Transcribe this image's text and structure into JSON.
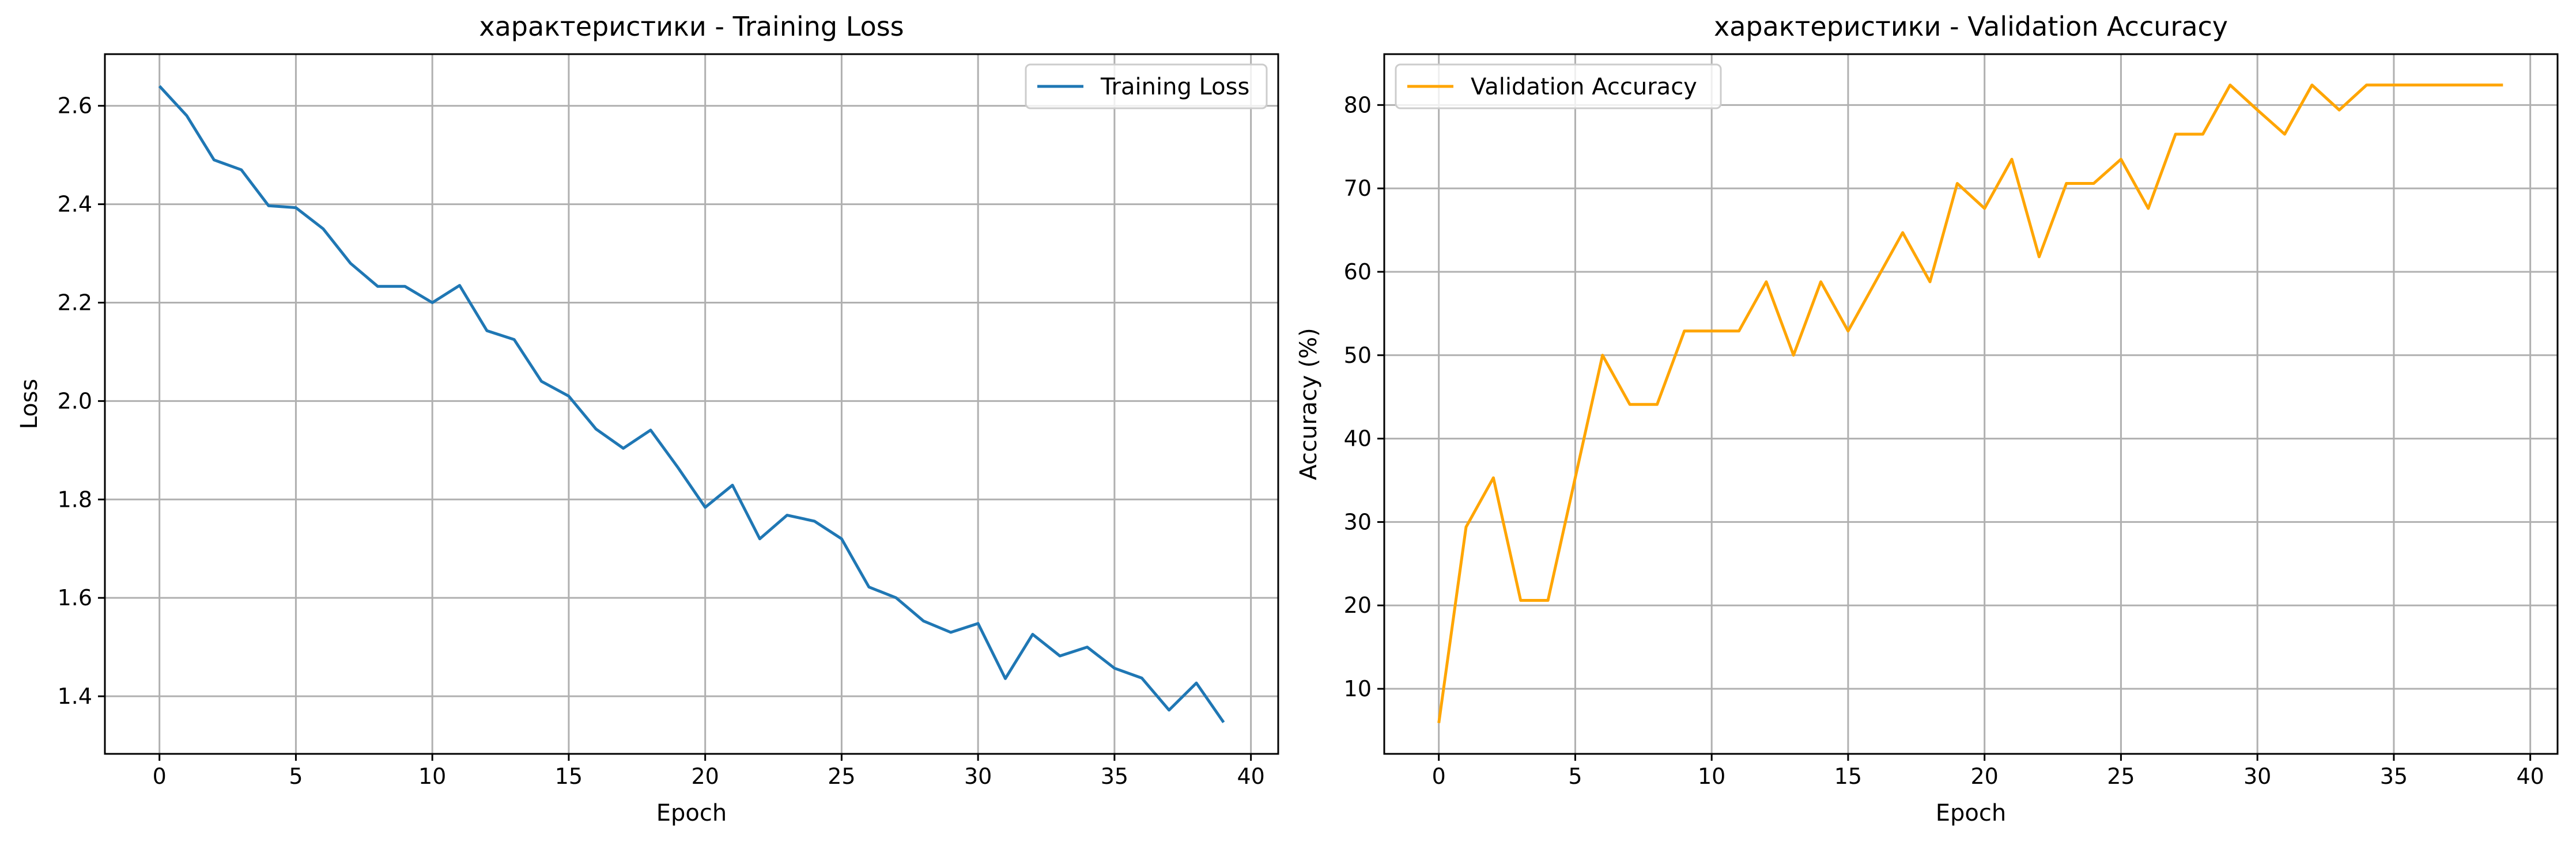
{
  "chart_data": [
    {
      "type": "line",
      "title": "характеристики - Training Loss",
      "xlabel": "Epoch",
      "ylabel": "Loss",
      "xlim": [
        -2,
        41
      ],
      "ylim": [
        1.283,
        2.705
      ],
      "xticks": [
        0,
        5,
        10,
        15,
        20,
        25,
        30,
        35,
        40
      ],
      "yticks": [
        1.4,
        1.6,
        1.8,
        2.0,
        2.2,
        2.4,
        2.6
      ],
      "grid": true,
      "legend_position": "top-right",
      "series": [
        {
          "name": "Training Loss",
          "color": "#1f77b4",
          "x": [
            0,
            1,
            2,
            3,
            4,
            5,
            6,
            7,
            8,
            9,
            10,
            11,
            12,
            13,
            14,
            15,
            16,
            17,
            18,
            19,
            20,
            21,
            22,
            23,
            24,
            25,
            26,
            27,
            28,
            29,
            30,
            31,
            32,
            33,
            34,
            35,
            36,
            37,
            38,
            39
          ],
          "values": [
            2.64,
            2.58,
            2.49,
            2.47,
            2.397,
            2.393,
            2.35,
            2.28,
            2.233,
            2.233,
            2.2,
            2.235,
            2.143,
            2.125,
            2.04,
            2.01,
            1.943,
            1.904,
            1.941,
            1.865,
            1.784,
            1.829,
            1.72,
            1.768,
            1.756,
            1.72,
            1.622,
            1.6,
            1.553,
            1.53,
            1.548,
            1.436,
            1.526,
            1.482,
            1.5,
            1.457,
            1.437,
            1.372,
            1.427,
            1.347
          ]
        }
      ]
    },
    {
      "type": "line",
      "title": "характеристики - Validation Accuracy",
      "xlabel": "Epoch",
      "ylabel": "Accuracy (%)",
      "xlim": [
        -2,
        41
      ],
      "ylim": [
        2.2,
        86.1
      ],
      "xticks": [
        0,
        5,
        10,
        15,
        20,
        25,
        30,
        35,
        40
      ],
      "yticks": [
        10,
        20,
        30,
        40,
        50,
        60,
        70,
        80
      ],
      "grid": true,
      "legend_position": "top-left",
      "series": [
        {
          "name": "Validation Accuracy",
          "color": "#ffa500",
          "x": [
            0,
            1,
            2,
            3,
            4,
            5,
            6,
            7,
            8,
            9,
            10,
            11,
            12,
            13,
            14,
            15,
            16,
            17,
            18,
            19,
            20,
            21,
            22,
            23,
            24,
            25,
            26,
            27,
            28,
            29,
            30,
            31,
            32,
            33,
            34,
            35,
            36,
            37,
            38,
            39
          ],
          "values": [
            5.9,
            29.4,
            35.3,
            20.6,
            20.6,
            35.3,
            50.0,
            44.1,
            44.1,
            52.9,
            52.9,
            52.9,
            58.8,
            50.0,
            58.8,
            52.9,
            58.8,
            64.7,
            58.8,
            70.6,
            67.6,
            73.5,
            61.8,
            70.6,
            70.6,
            73.5,
            67.6,
            76.5,
            76.5,
            82.4,
            79.4,
            76.5,
            82.4,
            79.4,
            82.4,
            82.4,
            82.4,
            82.4,
            82.4,
            82.4
          ]
        }
      ]
    }
  ]
}
